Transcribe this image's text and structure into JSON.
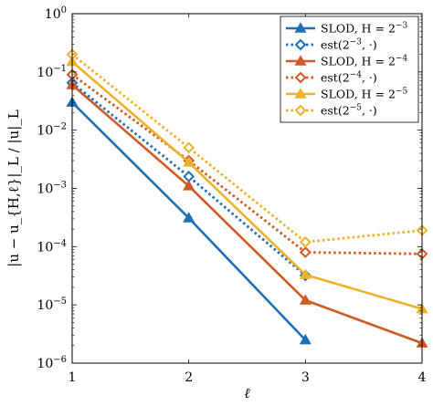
{
  "chart_data": {
    "type": "line",
    "xlabel": "ℓ",
    "ylabel": "|u − u_{H,ℓ}|_L / |u|_L",
    "x_ticks": [
      1,
      2,
      3,
      4
    ],
    "x_tick_labels": [
      "1",
      "2",
      "3",
      "4"
    ],
    "xlim": [
      1,
      4
    ],
    "yscale": "log",
    "ylim": [
      1e-06,
      1
    ],
    "y_ticks": [
      1e-06,
      1e-05,
      0.0001,
      0.001,
      0.01,
      0.1,
      1
    ],
    "y_tick_labels": [
      {
        "base": "10",
        "exp": "−6"
      },
      {
        "base": "10",
        "exp": "−5"
      },
      {
        "base": "10",
        "exp": "−4"
      },
      {
        "base": "10",
        "exp": "−3"
      },
      {
        "base": "10",
        "exp": "−2"
      },
      {
        "base": "10",
        "exp": "−1"
      },
      {
        "base": "10",
        "exp": "0"
      }
    ],
    "grid": false,
    "legend_position": "top-right",
    "series": [
      {
        "name_main": "SLOD, H = 2",
        "name_exp": "−3",
        "name_tail": "",
        "color": "#1f6fb5",
        "marker": "triangle",
        "style": "solid",
        "x": [
          1,
          2,
          3
        ],
        "y": [
          0.03,
          0.00031,
          2.5e-06
        ]
      },
      {
        "name_main": "est(2",
        "name_exp": "−3",
        "name_tail": ", ·)",
        "color": "#1f6fb5",
        "marker": "diamond",
        "style": "dotted",
        "x": [
          1,
          2,
          3
        ],
        "y": [
          0.065,
          0.0016,
          3.2e-05
        ]
      },
      {
        "name_main": "SLOD, H = 2",
        "name_exp": "−4",
        "name_tail": "",
        "color": "#d05a26",
        "marker": "triangle",
        "style": "solid",
        "x": [
          1,
          2,
          3,
          4
        ],
        "y": [
          0.06,
          0.0011,
          1.2e-05,
          2.2e-06
        ]
      },
      {
        "name_main": "est(2",
        "name_exp": "−4",
        "name_tail": ", ·)",
        "color": "#d05a26",
        "marker": "diamond",
        "style": "dotted",
        "x": [
          1,
          2,
          3,
          4
        ],
        "y": [
          0.09,
          0.003,
          8e-05,
          7.5e-05
        ]
      },
      {
        "name_main": "SLOD, H = 2",
        "name_exp": "−5",
        "name_tail": "",
        "color": "#eeb12a",
        "marker": "triangle",
        "style": "solid",
        "x": [
          1,
          2,
          3,
          4
        ],
        "y": [
          0.15,
          0.0028,
          3.3e-05,
          8.5e-06
        ]
      },
      {
        "name_main": "est(2",
        "name_exp": "−5",
        "name_tail": ", ·)",
        "color": "#eeb12a",
        "marker": "diamond",
        "style": "dotted",
        "x": [
          1,
          2,
          3,
          4
        ],
        "y": [
          0.2,
          0.005,
          0.00012,
          0.00019
        ]
      }
    ]
  }
}
